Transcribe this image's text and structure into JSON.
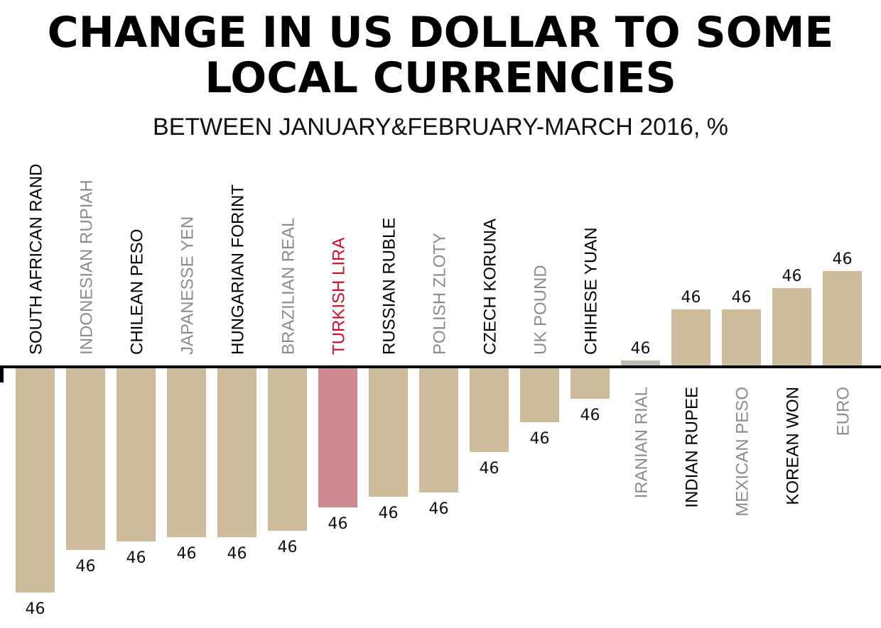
{
  "chart_data": {
    "type": "bar",
    "title": "CHANGE IN US DOLLAR TO SOME LOCAL CURRENCIES",
    "subtitle": "BETWEEN JANUARY&FEBRUARY-MARCH 2016, %",
    "xlabel": "",
    "ylabel": "",
    "categories": [
      "SOUTH AFRICAN RAND",
      "INDONESIAN RUPIAH",
      "CHILEAN PESO",
      "JAPANESSE YEN",
      "HUNGARIAN FORINT",
      "BRAZILIAN REAL",
      "TURKISH LIRA",
      "RUSSIAN RUBLE",
      "POLISH ZLOTY",
      "CZECH KORUNA",
      "UK POUND",
      "CHIHESE YUAN",
      "IRANIAN RIAL",
      "INDIAN RUPEE",
      "MEXICAN PESO",
      "KOREAN WON",
      "EURO"
    ],
    "values": [
      -10.6,
      -8.6,
      -8.2,
      -8.0,
      -8.0,
      -7.7,
      -6.6,
      -6.1,
      -5.9,
      -4.0,
      -2.6,
      -1.5,
      0.3,
      2.7,
      2.7,
      3.7,
      4.5
    ],
    "data_labels": [
      "46",
      "46",
      "46",
      "46",
      "46",
      "46",
      "46",
      "46",
      "46",
      "46",
      "46",
      "46",
      "46",
      "46",
      "46",
      "46",
      "46"
    ],
    "label_colors": [
      "#000000",
      "#8c8c8c",
      "#000000",
      "#8c8c8c",
      "#000000",
      "#8c8c8c",
      "#c8102e",
      "#000000",
      "#8c8c8c",
      "#000000",
      "#8c8c8c",
      "#000000",
      "#8c8c8c",
      "#000000",
      "#8c8c8c",
      "#000000",
      "#8c8c8c"
    ],
    "bar_colors": [
      "#cdbd9d",
      "#cdbd9d",
      "#cdbd9d",
      "#cdbd9d",
      "#cdbd9d",
      "#cdbd9d",
      "#cd888d",
      "#cdbd9d",
      "#cdbd9d",
      "#cdbd9d",
      "#cdbd9d",
      "#cdbd9d",
      "#b9bfae",
      "#cdbd9d",
      "#cdbd9d",
      "#cdbd9d",
      "#cdbd9d"
    ],
    "grid": false,
    "legend": "none"
  }
}
